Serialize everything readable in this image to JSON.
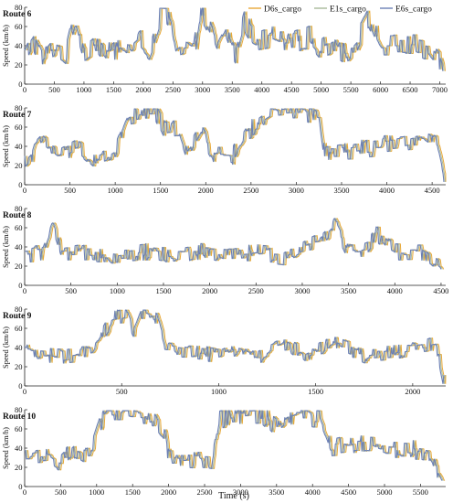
{
  "legend": {
    "placement": "top-right",
    "entries": [
      {
        "name": "D6s_cargo",
        "color": "#e8a838"
      },
      {
        "name": "E1s_cargo",
        "color": "#a8b89a"
      },
      {
        "name": "E6s_cargo",
        "color": "#6b7fb5"
      }
    ]
  },
  "xlabel": "Time (s)",
  "ylabel": "Speed (km/h)",
  "chart_data": [
    {
      "type": "line",
      "title": "Route 6",
      "xlim": [
        0,
        7100
      ],
      "ylim": [
        0,
        80
      ],
      "xticks": [
        0,
        500,
        1000,
        1500,
        2000,
        2500,
        3000,
        3500,
        4000,
        4500,
        5000,
        5500,
        6000,
        6500,
        7000
      ],
      "yticks": [
        0,
        20,
        40,
        60,
        80
      ],
      "series_names": [
        "D6s_cargo",
        "E1s_cargo",
        "E6s_cargo"
      ],
      "profile": [
        [
          0,
          30
        ],
        [
          150,
          45
        ],
        [
          300,
          25
        ],
        [
          500,
          40
        ],
        [
          700,
          30
        ],
        [
          850,
          70
        ],
        [
          1000,
          35
        ],
        [
          1200,
          45
        ],
        [
          1400,
          30
        ],
        [
          1600,
          40
        ],
        [
          1800,
          35
        ],
        [
          1950,
          45
        ],
        [
          2100,
          35
        ],
        [
          2200,
          55
        ],
        [
          2300,
          75
        ],
        [
          2450,
          65
        ],
        [
          2550,
          30
        ],
        [
          2700,
          35
        ],
        [
          2850,
          30
        ],
        [
          2950,
          78
        ],
        [
          3100,
          60
        ],
        [
          3250,
          35
        ],
        [
          3400,
          55
        ],
        [
          3550,
          30
        ],
        [
          3700,
          65
        ],
        [
          3850,
          50
        ],
        [
          4000,
          45
        ],
        [
          4200,
          50
        ],
        [
          4400,
          40
        ],
        [
          4600,
          45
        ],
        [
          4800,
          50
        ],
        [
          5000,
          35
        ],
        [
          5200,
          45
        ],
        [
          5400,
          30
        ],
        [
          5600,
          45
        ],
        [
          5800,
          70
        ],
        [
          6000,
          40
        ],
        [
          6300,
          40
        ],
        [
          6600,
          40
        ],
        [
          6800,
          35
        ],
        [
          7000,
          20
        ],
        [
          7050,
          10
        ]
      ],
      "noise": 12
    },
    {
      "type": "line",
      "title": "Route 7",
      "xlim": [
        0,
        4650
      ],
      "ylim": [
        0,
        80
      ],
      "xticks": [
        0,
        500,
        1000,
        1500,
        2000,
        2500,
        3000,
        3500,
        4000,
        4500
      ],
      "yticks": [
        0,
        20,
        40,
        60,
        80
      ],
      "series_names": [
        "D6s_cargo",
        "E1s_cargo",
        "E6s_cargo"
      ],
      "profile": [
        [
          0,
          25
        ],
        [
          200,
          45
        ],
        [
          400,
          30
        ],
        [
          600,
          40
        ],
        [
          800,
          25
        ],
        [
          1000,
          35
        ],
        [
          1150,
          70
        ],
        [
          1300,
          75
        ],
        [
          1450,
          75
        ],
        [
          1550,
          55
        ],
        [
          1700,
          60
        ],
        [
          1800,
          30
        ],
        [
          1950,
          55
        ],
        [
          2100,
          30
        ],
        [
          2300,
          30
        ],
        [
          2450,
          55
        ],
        [
          2600,
          65
        ],
        [
          2700,
          72
        ],
        [
          2900,
          75
        ],
        [
          3100,
          75
        ],
        [
          3250,
          70
        ],
        [
          3300,
          35
        ],
        [
          3600,
          35
        ],
        [
          3900,
          40
        ],
        [
          4200,
          45
        ],
        [
          4400,
          50
        ],
        [
          4550,
          40
        ],
        [
          4630,
          5
        ]
      ],
      "noise": 10
    },
    {
      "type": "line",
      "title": "Route 8",
      "xlim": [
        0,
        4550
      ],
      "ylim": [
        0,
        80
      ],
      "xticks": [
        0,
        500,
        1000,
        1500,
        2000,
        2500,
        3000,
        3500,
        4000,
        4500
      ],
      "yticks": [
        0,
        20,
        40,
        60,
        80
      ],
      "series_names": [
        "D6s_cargo",
        "E1s_cargo",
        "E6s_cargo"
      ],
      "profile": [
        [
          0,
          30
        ],
        [
          200,
          35
        ],
        [
          300,
          60
        ],
        [
          400,
          30
        ],
        [
          700,
          35
        ],
        [
          1000,
          30
        ],
        [
          1300,
          35
        ],
        [
          1600,
          30
        ],
        [
          1900,
          35
        ],
        [
          2200,
          30
        ],
        [
          2500,
          35
        ],
        [
          2800,
          30
        ],
        [
          3000,
          40
        ],
        [
          3200,
          50
        ],
        [
          3350,
          65
        ],
        [
          3500,
          35
        ],
        [
          3700,
          40
        ],
        [
          3800,
          55
        ],
        [
          4000,
          35
        ],
        [
          4300,
          35
        ],
        [
          4500,
          20
        ]
      ],
      "noise": 9
    },
    {
      "type": "line",
      "title": "Route 9",
      "xlim": [
        0,
        2170
      ],
      "ylim": [
        0,
        80
      ],
      "xticks": [
        0,
        500,
        1000,
        1500,
        2000
      ],
      "yticks": [
        0,
        20,
        40,
        60,
        80
      ],
      "series_names": [
        "D6s_cargo",
        "E1s_cargo",
        "E6s_cargo"
      ],
      "profile": [
        [
          0,
          35
        ],
        [
          200,
          30
        ],
        [
          350,
          35
        ],
        [
          450,
          70
        ],
        [
          520,
          75
        ],
        [
          560,
          55
        ],
        [
          600,
          75
        ],
        [
          680,
          70
        ],
        [
          720,
          40
        ],
        [
          900,
          35
        ],
        [
          1000,
          30
        ],
        [
          1100,
          40
        ],
        [
          1200,
          30
        ],
        [
          1350,
          45
        ],
        [
          1450,
          30
        ],
        [
          1600,
          45
        ],
        [
          1750,
          30
        ],
        [
          1900,
          35
        ],
        [
          2050,
          40
        ],
        [
          2120,
          45
        ],
        [
          2160,
          5
        ]
      ],
      "noise": 8
    },
    {
      "type": "line",
      "title": "Route 10",
      "xlim": [
        0,
        5850
      ],
      "ylim": [
        0,
        80
      ],
      "xticks": [
        0,
        500,
        1000,
        1500,
        2000,
        2500,
        3000,
        3500,
        4000,
        4500,
        5000,
        5500
      ],
      "yticks": [
        0,
        20,
        40,
        60,
        80
      ],
      "series_names": [
        "D6s_cargo",
        "E1s_cargo",
        "E6s_cargo"
      ],
      "profile": [
        [
          0,
          30
        ],
        [
          300,
          35
        ],
        [
          500,
          25
        ],
        [
          700,
          40
        ],
        [
          900,
          30
        ],
        [
          1100,
          75
        ],
        [
          1300,
          75
        ],
        [
          1600,
          75
        ],
        [
          1800,
          70
        ],
        [
          1950,
          55
        ],
        [
          2000,
          28
        ],
        [
          2300,
          28
        ],
        [
          2600,
          25
        ],
        [
          2700,
          70
        ],
        [
          3000,
          75
        ],
        [
          3300,
          75
        ],
        [
          3500,
          60
        ],
        [
          3700,
          75
        ],
        [
          4100,
          70
        ],
        [
          4250,
          40
        ],
        [
          4500,
          45
        ],
        [
          4700,
          45
        ],
        [
          5000,
          40
        ],
        [
          5300,
          40
        ],
        [
          5600,
          35
        ],
        [
          5800,
          10
        ]
      ],
      "noise": 10
    }
  ]
}
